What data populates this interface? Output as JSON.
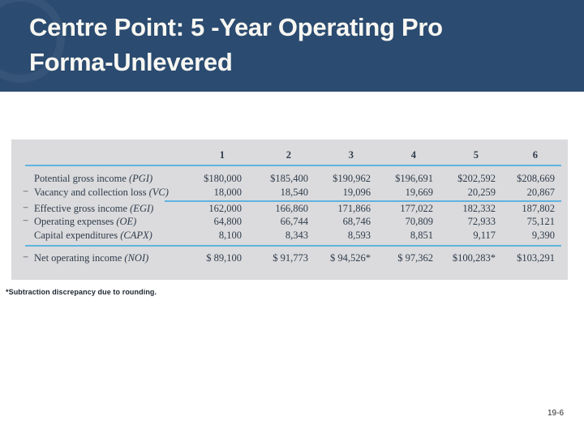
{
  "slide": {
    "title_line1": "Centre Point: 5 -Year Operating Pro",
    "title_line2": "Forma-Unlevered",
    "footnote": "*Subtraction discrepancy due to rounding.",
    "page_number": "19-6"
  },
  "table": {
    "col_headers": [
      "1",
      "2",
      "3",
      "4",
      "5",
      "6"
    ],
    "rows": [
      {
        "prefix": "",
        "label": "Potential gross income ",
        "abbr": "(PGI)",
        "values": [
          "$180,000",
          "$185,400",
          "$190,962",
          "$196,691",
          "$202,592",
          "$208,669"
        ]
      },
      {
        "prefix": "−",
        "label": "Vacancy and collection loss ",
        "abbr": "(VC)",
        "values": [
          "18,000",
          "18,540",
          "19,096",
          "19,669",
          "20,259",
          "20,867"
        ]
      },
      {
        "prefix": "−",
        "label": "Effective gross income ",
        "abbr": "(EGI)",
        "values": [
          "162,000",
          "166,860",
          "171,866",
          "177,022",
          "182,332",
          "187,802"
        ]
      },
      {
        "prefix": "−",
        "label": "Operating expenses ",
        "abbr": "(OE)",
        "values": [
          "64,800",
          "66,744",
          "68,746",
          "70,809",
          "72,933",
          "75,121"
        ]
      },
      {
        "prefix": "",
        "label": "Capital expenditures ",
        "abbr": "(CAPX)",
        "values": [
          "8,100",
          "8,343",
          "8,593",
          "8,851",
          "9,117",
          "9,390"
        ]
      },
      {
        "prefix": "−",
        "label": "Net operating income ",
        "abbr": "(NOI)",
        "values": [
          "$ 89,100",
          "$ 91,773",
          "$ 94,526*",
          "$ 97,362",
          "$100,283*",
          "$103,291"
        ]
      }
    ]
  },
  "colors": {
    "band": "#2B4B70",
    "rule": "#5FB3E0",
    "table_bg": "#DBDBDD",
    "ink": "#2F3C4B",
    "paper": "#FFFFFF"
  }
}
